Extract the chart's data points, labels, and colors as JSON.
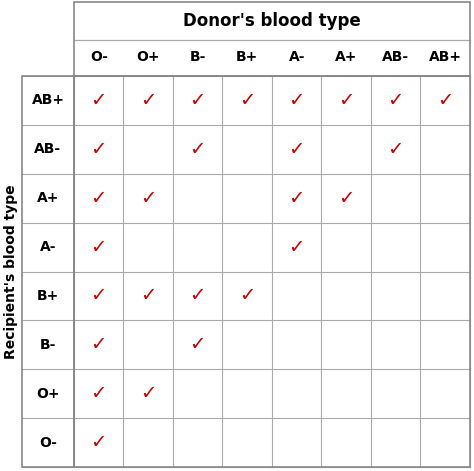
{
  "donor_types": [
    "O-",
    "O+",
    "B-",
    "B+",
    "A-",
    "A+",
    "AB-",
    "AB+"
  ],
  "recipient_types": [
    "AB+",
    "AB-",
    "A+",
    "A-",
    "B+",
    "B-",
    "O+",
    "O-"
  ],
  "compatibility": [
    [
      1,
      1,
      1,
      1,
      1,
      1,
      1,
      1
    ],
    [
      1,
      0,
      1,
      0,
      1,
      0,
      1,
      0
    ],
    [
      1,
      1,
      0,
      0,
      1,
      1,
      0,
      0
    ],
    [
      1,
      0,
      0,
      0,
      1,
      0,
      0,
      0
    ],
    [
      1,
      1,
      1,
      1,
      0,
      0,
      0,
      0
    ],
    [
      1,
      0,
      1,
      0,
      0,
      0,
      0,
      0
    ],
    [
      1,
      1,
      0,
      0,
      0,
      0,
      0,
      0
    ],
    [
      1,
      0,
      0,
      0,
      0,
      0,
      0,
      0
    ]
  ],
  "check_color": "#cc0000",
  "grid_color": "#aaaaaa",
  "donor_label": "Donor's blood type",
  "recipient_label": "Recipient's blood type",
  "donor_label_fontsize": 12,
  "col_label_fontsize": 10,
  "row_label_fontsize": 10,
  "recipient_label_fontsize": 10,
  "check_fontsize": 14,
  "background_color": "#ffffff",
  "border_color": "#888888"
}
